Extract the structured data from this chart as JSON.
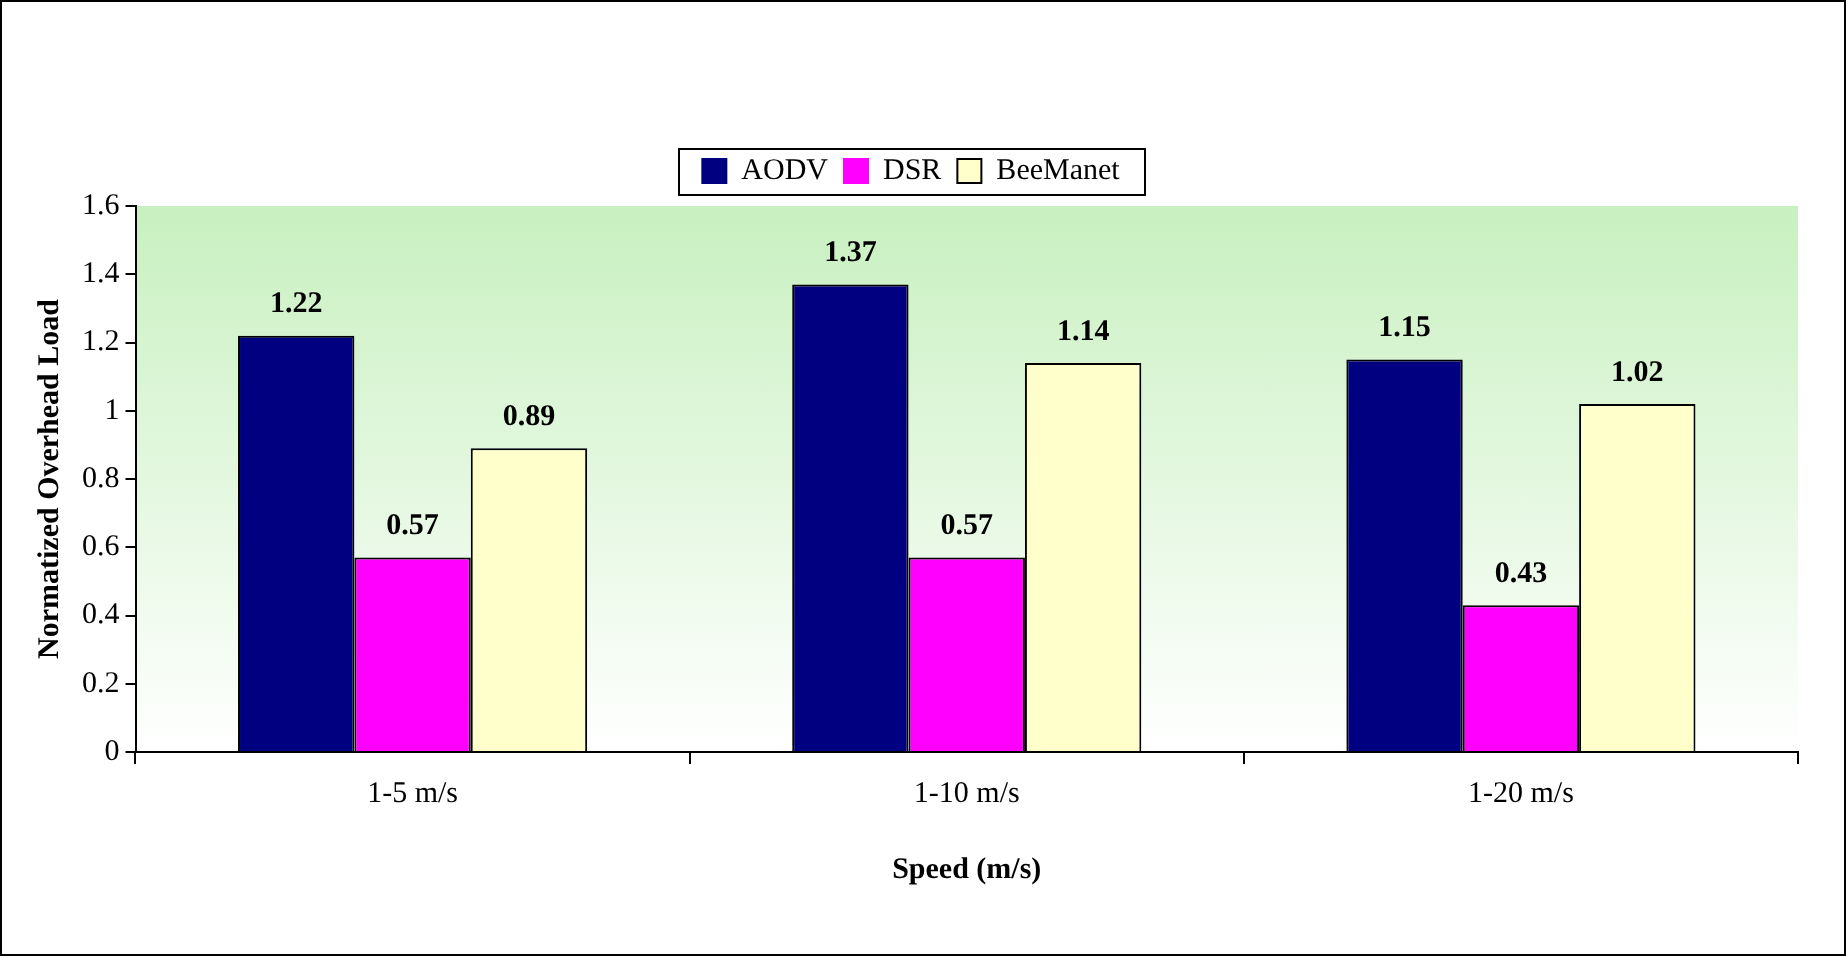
{
  "chart_data": {
    "type": "bar",
    "xlabel": "Speed (m/s)",
    "ylabel": "Normatized Overhead Load",
    "categories": [
      "1-5 m/s",
      "1-10 m/s",
      "1-20 m/s"
    ],
    "series": [
      {
        "name": "AODV",
        "color": "#000080",
        "values": [
          1.22,
          1.37,
          1.15
        ]
      },
      {
        "name": "DSR",
        "color": "#ff00ff",
        "values": [
          0.57,
          0.57,
          0.43
        ]
      },
      {
        "name": "BeeManet",
        "color": "#ffffcc",
        "values": [
          0.89,
          1.14,
          1.02
        ]
      }
    ],
    "ylim": [
      0,
      1.6
    ],
    "yticks": [
      0,
      0.2,
      0.4,
      0.6,
      0.8,
      1,
      1.2,
      1.4,
      1.6
    ],
    "grid": false,
    "legend": "top",
    "data_labels": true
  }
}
